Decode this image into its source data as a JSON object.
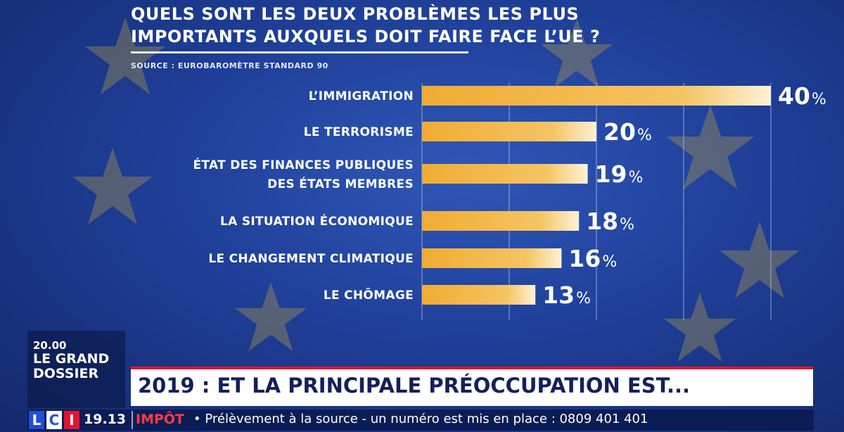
{
  "title": {
    "line1": "QUELS SONT LES DEUX PROBLÈMES LES PLUS",
    "line2": "IMPORTANTS AUXQUELS DOIT FAIRE FACE L’UE ?"
  },
  "source": "SOURCE : EUROBAROMÈTRE STANDARD 90",
  "chart_data": {
    "type": "bar",
    "orientation": "horizontal",
    "categories": [
      [
        "L’IMMIGRATION"
      ],
      [
        "LE TERRORISME"
      ],
      [
        "ÉTAT DES FINANCES PUBLIQUES",
        "DES ÉTATS MEMBRES"
      ],
      [
        "LA SITUATION ÉCONOMIQUE"
      ],
      [
        "LE CHANGEMENT CLIMATIQUE"
      ],
      [
        "LE CHÔMAGE"
      ]
    ],
    "values": [
      40,
      20,
      19,
      18,
      16,
      13
    ],
    "value_labels": [
      "40",
      "20",
      "19",
      "18",
      "16",
      "13"
    ],
    "unit": "%",
    "xlim": [
      0,
      40
    ],
    "grid": true,
    "bar_color": "#f2b13a",
    "bar_highlight": "#fbe3a8"
  },
  "show": {
    "time": "20.00",
    "name": "LE GRAND DOSSIER"
  },
  "headline": "2019 : ET LA PRINCIPALE PRÉOCCUPATION EST...",
  "ticker": {
    "logo_letters": [
      "L",
      "C",
      "I"
    ],
    "clock": "19.13",
    "topic": "IMPÔT",
    "text": "• Prélèvement à la source - un numéro est mis en place : 0809 401 401"
  },
  "colors": {
    "background": "#1f3f98",
    "accent_red": "#e2142d",
    "ticker_bg": "#0c1c55"
  }
}
